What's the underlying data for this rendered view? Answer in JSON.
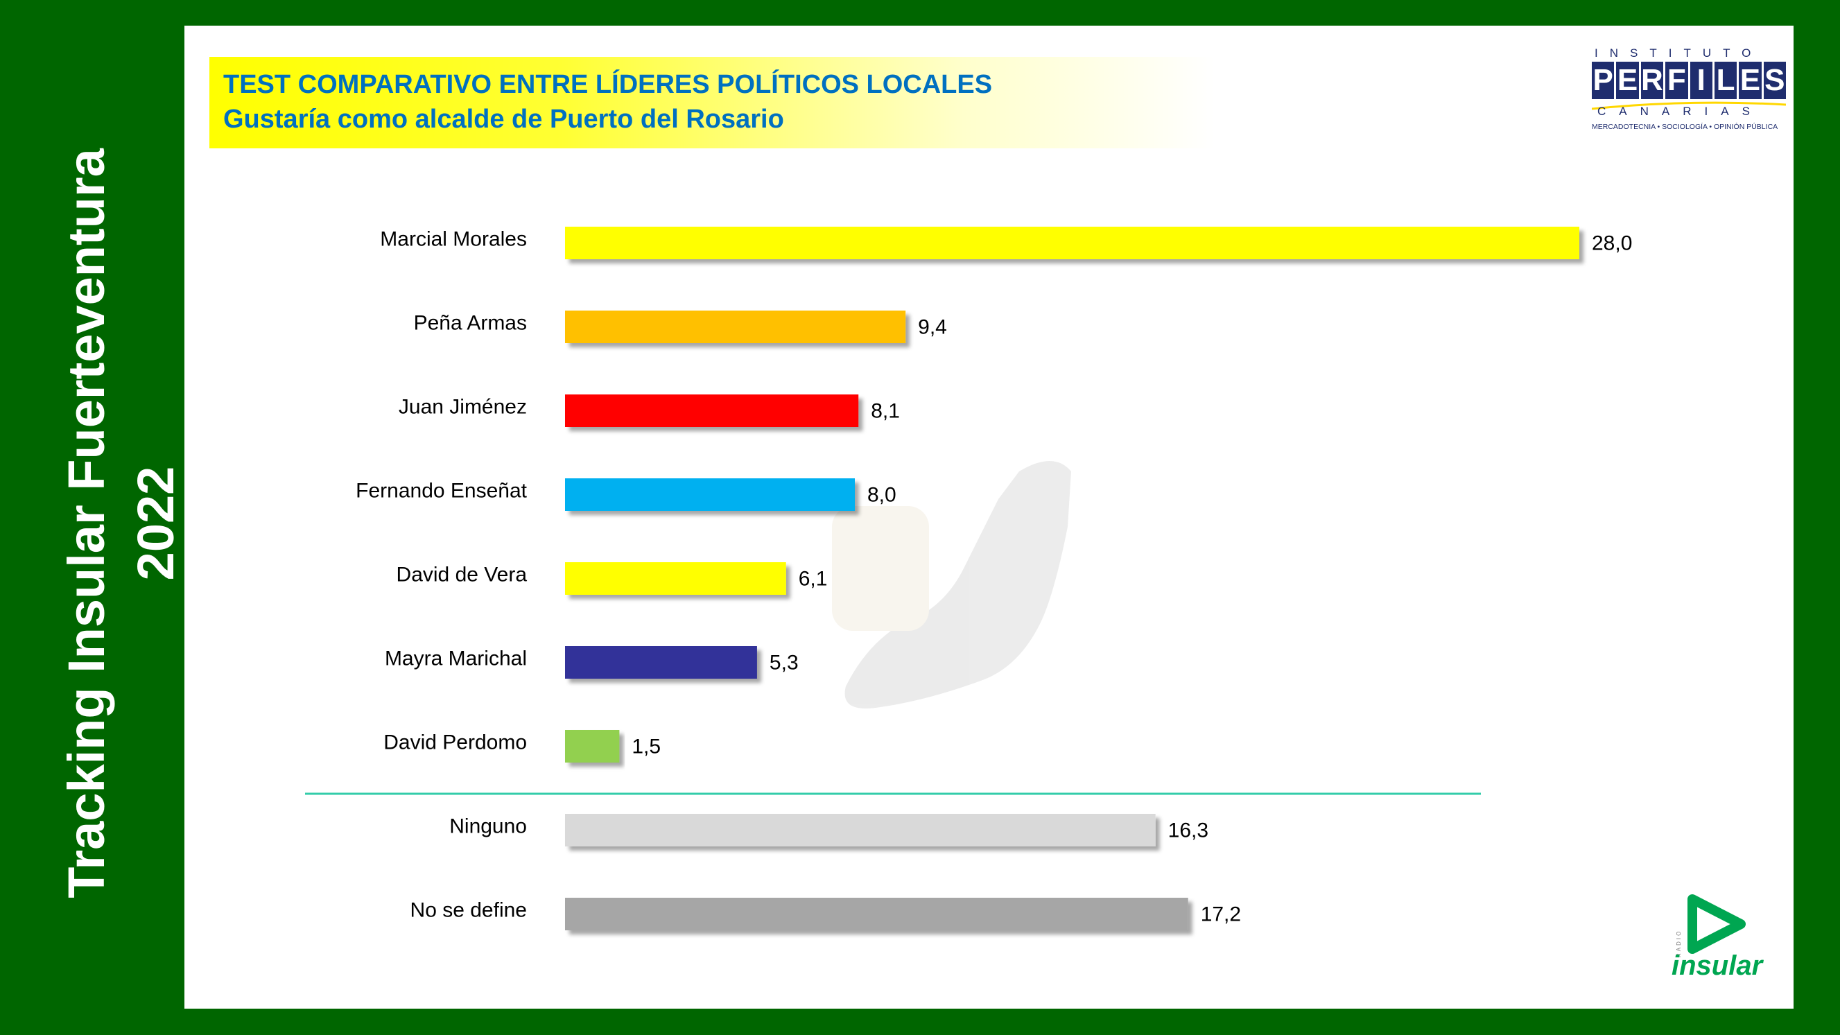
{
  "side_title": {
    "line1": "Tracking Insular Fuerteventura",
    "line2": "2022"
  },
  "header": {
    "title": "TEST COMPARATIVO ENTRE LÍDERES POLÍTICOS LOCALES",
    "subtitle": "Gustaría como alcalde de Puerto del Rosario"
  },
  "logos": {
    "perfiles_top": "INSTITUTO",
    "perfiles_letters": [
      "P",
      "E",
      "R",
      "F",
      "I",
      "L",
      "E",
      "S"
    ],
    "perfiles_bottom": "CANARIAS",
    "perfiles_tagline": "MERCADOTECNIA • SOCIOLOGÍA • OPINIÓN PÚBLICA",
    "insular_small": "RADIO",
    "insular_word": "insular"
  },
  "colors": {
    "frame": "#006600",
    "title_text": "#0070c0",
    "separator": "#33ccaa"
  },
  "chart_data": {
    "type": "bar",
    "orientation": "horizontal",
    "categories": [
      "Marcial Morales",
      "Peña Armas",
      "Juan Jiménez",
      "Fernando Enseñat",
      "David de Vera",
      "Mayra Marichal",
      "David Perdomo",
      "Ninguno",
      "No se define"
    ],
    "values": [
      28.0,
      9.4,
      8.1,
      8.0,
      6.1,
      5.3,
      1.5,
      16.3,
      17.2
    ],
    "labels": [
      "28,0",
      "9,4",
      "8,1",
      "8,0",
      "6,1",
      "5,3",
      "1,5",
      "16,3",
      "17,2"
    ],
    "colors": [
      "#ffff00",
      "#ffc000",
      "#ff0000",
      "#00b0f0",
      "#ffff00",
      "#333399",
      "#92d050",
      "#d9d9d9",
      "#a6a6a6"
    ],
    "separator_after_index": 6,
    "xlim": [
      0,
      28.0
    ],
    "grid": false,
    "legend": "none"
  }
}
